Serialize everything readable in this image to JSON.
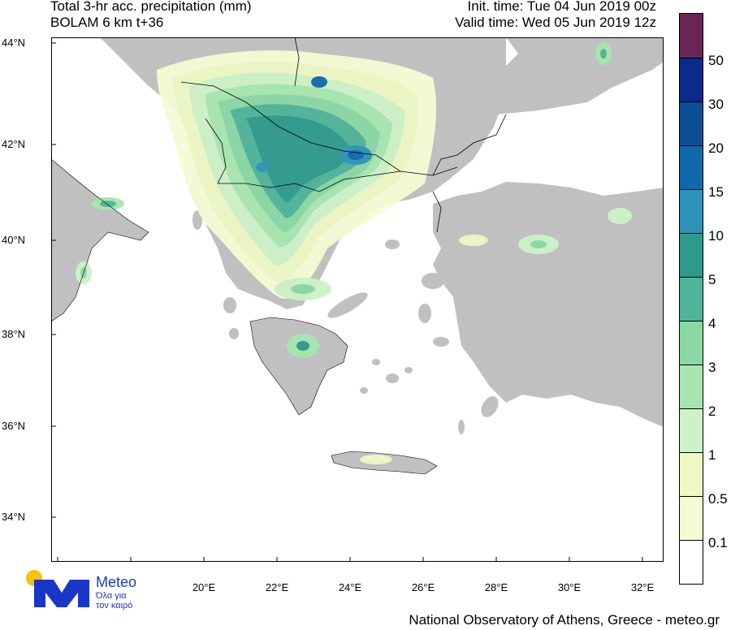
{
  "header": {
    "title": "Total 3-hr acc. precipitation (mm)",
    "subtitle": "BOLAM 6 km t+36",
    "init_time": "Init. time: Tue 04 Jun 2019 00z",
    "valid_time": "Valid time: Wed 05 Jun 2019 12z"
  },
  "axes": {
    "lat_labels": [
      "44°N",
      "42°N",
      "40°N",
      "38°N",
      "36°N",
      "34°N"
    ],
    "lon_labels": [
      "20°E",
      "22°E",
      "24°E",
      "26°E",
      "28°E",
      "30°E",
      "32°E"
    ]
  },
  "legend": {
    "labels": [
      "50",
      "30",
      "20",
      "15",
      "10",
      "5",
      "4",
      "3",
      "2",
      "1",
      "0.5",
      "0.1"
    ],
    "colors": [
      "#6b2456",
      "#0a2a8c",
      "#0c4f94",
      "#1069aa",
      "#2d93b8",
      "#2d9a8c",
      "#4fb49a",
      "#8ad8a4",
      "#a7e6b0",
      "#cdf2c8",
      "#eef8c4",
      "#f5fbd4",
      "#ffffff"
    ]
  },
  "colors": {
    "land": "#c0c0c0",
    "sea": "#ffffff"
  },
  "logo": {
    "name": "Meteo",
    "tagline_1": "Όλα για",
    "tagline_2": "τον καιρό"
  },
  "credit": "National Observatory of Athens, Greece - meteo.gr"
}
